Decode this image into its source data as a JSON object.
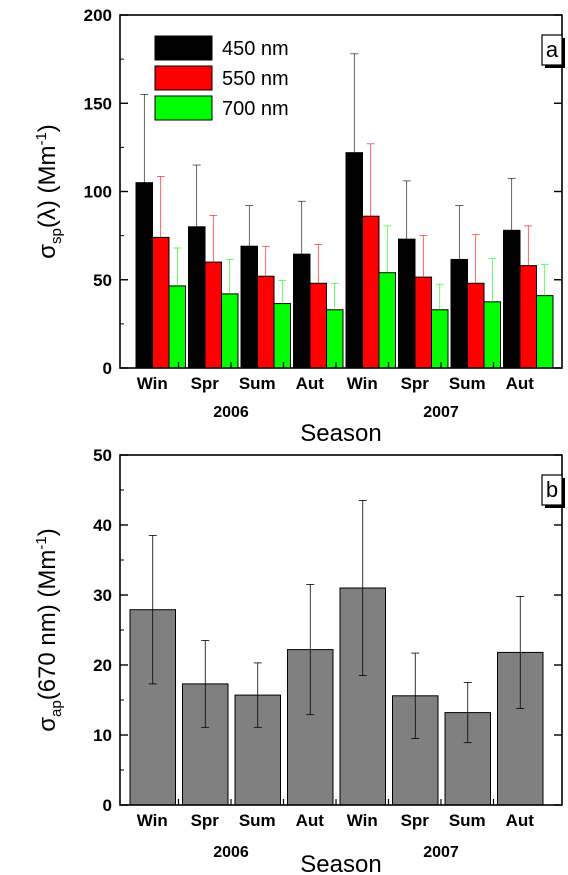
{
  "chart_data": [
    {
      "panel": "a",
      "type": "bar",
      "categories": [
        "Win",
        "Spr",
        "Sum",
        "Aut",
        "Win",
        "Spr",
        "Sum",
        "Aut"
      ],
      "years": [
        {
          "label": "2006",
          "from": 0,
          "to": 3
        },
        {
          "label": "2007",
          "from": 4,
          "to": 7
        }
      ],
      "xlabel": "Season",
      "ylabel_main": "σ",
      "ylabel_sub": "sp",
      "ylabel_rest": "(λ) (Mm",
      "ylabel_sup": "-1",
      "ylabel_close": ")",
      "ylim": [
        0,
        200
      ],
      "yticks": [
        0,
        50,
        100,
        150,
        200
      ],
      "legend_position": "top-left",
      "series": [
        {
          "name": "450 nm",
          "color": "#000000",
          "values": [
            105,
            80,
            69,
            64.5,
            122,
            73,
            61.5,
            78
          ],
          "errors": [
            50,
            35,
            23,
            30,
            56,
            33,
            30.5,
            29.5
          ]
        },
        {
          "name": "550 nm",
          "color": "#ff0000",
          "values": [
            74,
            60,
            52,
            48,
            86,
            51.5,
            48,
            58
          ],
          "errors": [
            34.5,
            26.5,
            17,
            22,
            41,
            23.5,
            27.5,
            22.5
          ]
        },
        {
          "name": "700 nm",
          "color": "#00ff00",
          "values": [
            46.5,
            42,
            36.5,
            33,
            54,
            33,
            37.5,
            41
          ],
          "errors": [
            21.5,
            19.5,
            13,
            15,
            26.5,
            14.5,
            24.5,
            17.5
          ]
        }
      ]
    },
    {
      "panel": "b",
      "type": "bar",
      "categories": [
        "Win",
        "Spr",
        "Sum",
        "Aut",
        "Win",
        "Spr",
        "Sum",
        "Aut"
      ],
      "years": [
        {
          "label": "2006",
          "from": 0,
          "to": 3
        },
        {
          "label": "2007",
          "from": 4,
          "to": 7
        }
      ],
      "xlabel": "Season",
      "ylabel_main": "σ",
      "ylabel_sub": "ap",
      "ylabel_rest": "(670 nm) (Mm",
      "ylabel_sup": "-1",
      "ylabel_close": ")",
      "ylim": [
        0,
        50
      ],
      "yticks": [
        0,
        10,
        20,
        30,
        40,
        50
      ],
      "series": [
        {
          "color": "#808080",
          "values": [
            27.9,
            17.3,
            15.7,
            22.2,
            31,
            15.6,
            13.2,
            21.8
          ],
          "errors": [
            10.6,
            6.2,
            4.6,
            9.3,
            12.5,
            6.1,
            4.3,
            8
          ]
        }
      ]
    }
  ]
}
